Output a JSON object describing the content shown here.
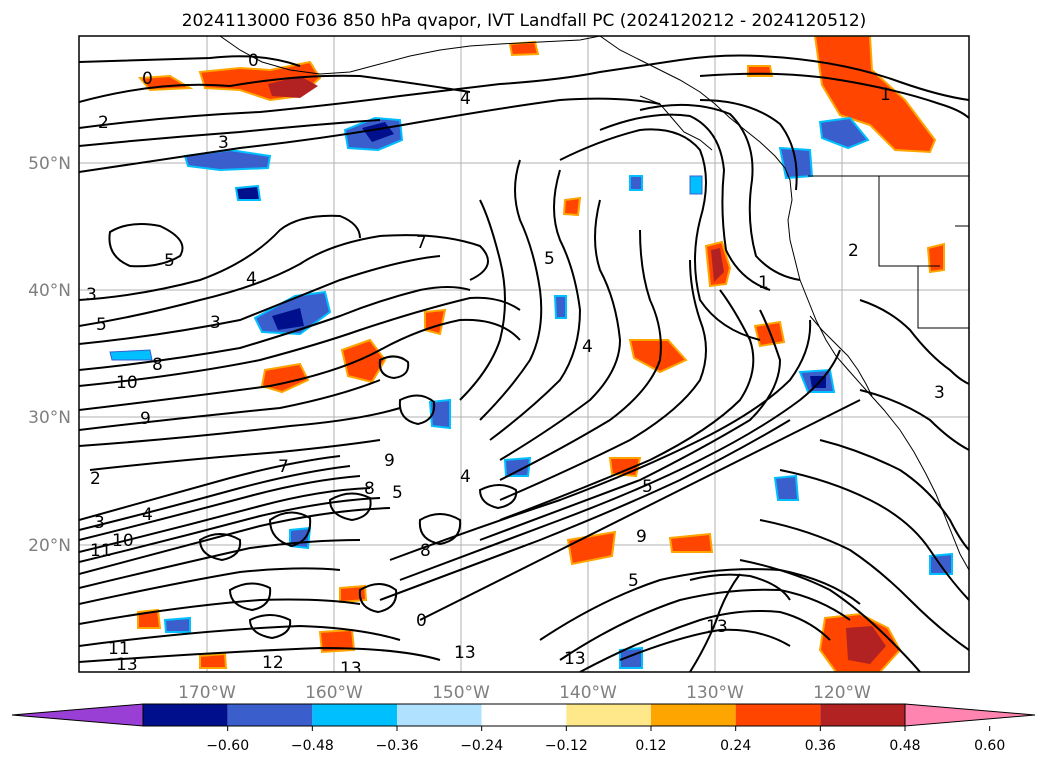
{
  "title": "2024113000 F036 850 hPa qvapor, IVT Landfall PC (2024120212 - 2024120512)",
  "lon_labels": [
    "170°W",
    "160°W",
    "150°W",
    "140°W",
    "130°W",
    "120°W"
  ],
  "lat_labels": [
    "50°N",
    "40°N",
    "30°N",
    "20°N"
  ],
  "colorbar": {
    "tick_labels": [
      "−0.60",
      "−0.48",
      "−0.36",
      "−0.24",
      "−0.12",
      "0.12",
      "0.24",
      "0.36",
      "0.48",
      "0.60"
    ],
    "colors": [
      "#9a3fd6",
      "#000f8c",
      "#3a5fcd",
      "#00bfff",
      "#b0e2ff",
      "#ffffff",
      "#ffe88a",
      "#ffa500",
      "#ff4500",
      "#b22222",
      "#ff85b0"
    ]
  },
  "contour_labels": [
    "0",
    "0",
    "2",
    "3",
    "4",
    "1",
    "5",
    "4",
    "3",
    "7",
    "5",
    "1",
    "2",
    "3",
    "5",
    "8",
    "10",
    "9",
    "9",
    "8",
    "4",
    "5",
    "3",
    "11",
    "10",
    "4",
    "7",
    "2",
    "13",
    "11",
    "12",
    "13",
    "9",
    "8",
    "13",
    "13",
    "13",
    "0",
    "5",
    "5",
    "4",
    "3"
  ]
}
